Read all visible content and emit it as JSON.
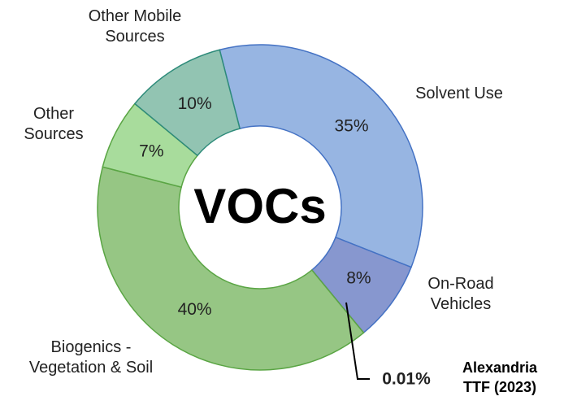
{
  "chart_data": {
    "type": "donut",
    "center_label": "VOCs",
    "categories": [
      "Solvent Use",
      "On-Road Vehicles",
      "Alexandria TTF (2023)",
      "Biogenics - Vegetation & Soil",
      "Other Sources",
      "Other Mobile Sources"
    ],
    "values": [
      35,
      8,
      0.01,
      40,
      7,
      10
    ],
    "value_labels": [
      "35%",
      "8%",
      "0.01%",
      "40%",
      "7%",
      "10%"
    ],
    "colors": [
      "#97b5e2",
      "#8797cf",
      "#a5a5a5",
      "#96c684",
      "#a8dc9c",
      "#92c4b2"
    ]
  }
}
